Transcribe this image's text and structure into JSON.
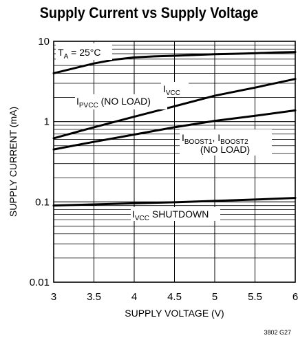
{
  "chart_data": {
    "type": "line",
    "title": "Supply Current vs Supply Voltage",
    "xlabel": "SUPPLY VOLTAGE (V)",
    "ylabel": "SUPPLY CURRENT (mA)",
    "xlim": [
      3,
      6
    ],
    "ylim": [
      0.01,
      10
    ],
    "yscale": "log",
    "grid": true,
    "x_ticks": [
      "3",
      "3.5",
      "4",
      "4.5",
      "5",
      "5.5",
      "6"
    ],
    "y_ticks": [
      "0.01",
      "0.1",
      "1",
      "10"
    ],
    "condition": {
      "main": "T",
      "sub": "A",
      "rest": " = 25°C"
    },
    "series": [
      {
        "label_main": "I",
        "label_sub": "VCC",
        "label_rest": "",
        "x": [
          3.0,
          3.25,
          3.5,
          3.75,
          4.0,
          4.25,
          4.5,
          4.75,
          5.0,
          5.25,
          5.5,
          5.75,
          6.0
        ],
        "y": [
          4.0,
          4.6,
          5.3,
          5.9,
          6.3,
          6.5,
          6.6,
          6.75,
          6.9,
          7.0,
          7.1,
          7.25,
          7.35
        ]
      },
      {
        "label_main": "I",
        "label_sub": "PVCC",
        "label_rest": " (NO LOAD)",
        "x": [
          3.0,
          3.5,
          4.0,
          4.5,
          5.0,
          5.5,
          6.0
        ],
        "y": [
          0.62,
          0.85,
          1.15,
          1.55,
          2.1,
          2.65,
          3.4
        ]
      },
      {
        "label_main": "I",
        "label_sub": "BOOST1",
        "label_rest": ", I",
        "label_sub2": "BOOST2",
        "label_line2": "(NO LOAD)",
        "x": [
          3.0,
          3.5,
          4.0,
          4.5,
          5.0,
          5.5,
          6.0
        ],
        "y": [
          0.45,
          0.56,
          0.69,
          0.85,
          1.02,
          1.18,
          1.38
        ]
      },
      {
        "label_main": "I",
        "label_sub": "VCC",
        "label_rest": " SHUTDOWN",
        "x": [
          3.0,
          3.5,
          4.0,
          4.5,
          5.0,
          5.5,
          6.0
        ],
        "y": [
          0.09,
          0.093,
          0.096,
          0.099,
          0.103,
          0.107,
          0.112
        ]
      }
    ]
  },
  "figure_id": "3802 G27"
}
